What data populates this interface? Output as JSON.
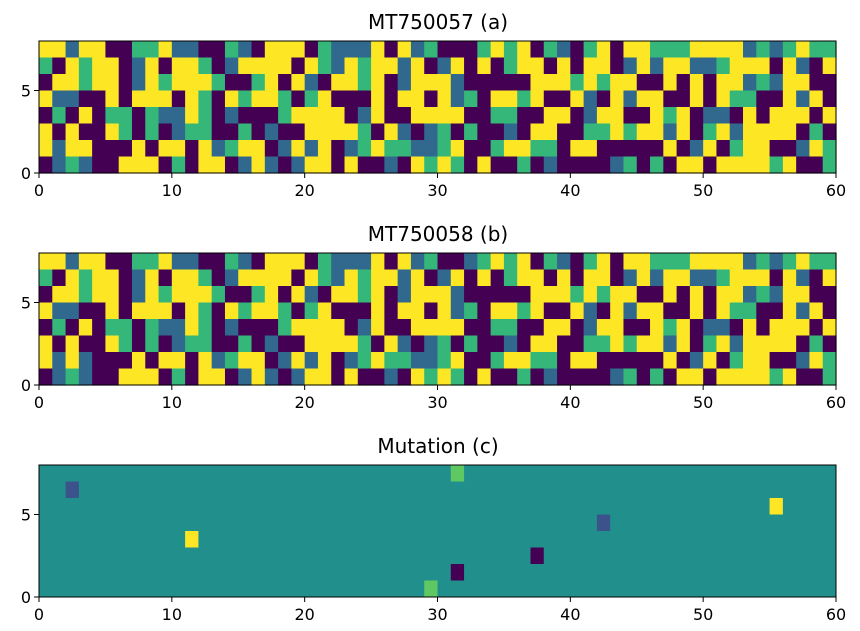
{
  "palette": {
    "0": "#440154",
    "1": "#31688e",
    "2": "#35b779",
    "3": "#fde725",
    "bg": "#21908c",
    "mut_1": "#3b528b",
    "mut_2": "#5ec962",
    "mut_3": "#fde725",
    "mut_0": "#440154"
  },
  "chart_data": [
    {
      "type": "heatmap",
      "title": "MT750057 (a)",
      "xlim": [
        0,
        60
      ],
      "ylim": [
        0,
        8
      ],
      "xticks": [
        0,
        10,
        20,
        30,
        40,
        50,
        60
      ],
      "yticks": [
        0,
        5
      ],
      "rows": [
        "331330022311002103330211130312000232302102303322233331212322",
        "203233013033201333303213233130130302330303301313311233303103",
        "033233013233320023031033230133310000033323233003030331213300",
        "311003033303203233202300030330312033230031031330030322003130",
        "020302202113201000233330130033330022003301330032301103033303",
        "303003202012200201003333203101202001033002232331302313333020",
        "313300030330312330131301232211230023322033000003013023300132",
        "012100333020330131013303001032320300201000012020330333323002"
      ]
    },
    {
      "type": "heatmap",
      "title": "MT750058 (b)",
      "xlim": [
        0,
        60
      ],
      "ylim": [
        0,
        8
      ],
      "xticks": [
        0,
        10,
        20,
        30,
        40,
        50,
        60
      ],
      "yticks": [
        0,
        5
      ],
      "rows": [
        "331330022311002103330211130312001232302102303322233331212322",
        "203233013033201333303213233130130302330303301313311233303103",
        "033233013233320023031033230133310000033323233003030331213300",
        "311003033303203233202300030330312033230031031330030322003130",
        "020302202113201000233330130033330022003301330032301103033303",
        "303003202012200201003333203101202001033002232331302313333020",
        "313100030330312330131301232211230023322033000003013023300132",
        "012100333020330131013303001032320300201000012020330333323002"
      ]
    },
    {
      "type": "heatmap",
      "title": "Mutation (c)",
      "xlim": [
        0,
        60
      ],
      "ylim": [
        0,
        8
      ],
      "xticks": [
        0,
        10,
        20,
        30,
        40,
        50,
        60
      ],
      "yticks": [
        0,
        5
      ],
      "background_value": 0,
      "cells": [
        {
          "x": 2,
          "y": 6,
          "value": "mut_1"
        },
        {
          "x": 11,
          "y": 3,
          "value": "mut_3"
        },
        {
          "x": 29,
          "y": 0,
          "value": "mut_2"
        },
        {
          "x": 31,
          "y": 1,
          "value": "mut_0"
        },
        {
          "x": 31,
          "y": 7,
          "value": "mut_2"
        },
        {
          "x": 37,
          "y": 2,
          "value": "mut_0"
        },
        {
          "x": 42,
          "y": 4,
          "value": "mut_1"
        },
        {
          "x": 55,
          "y": 5,
          "value": "mut_3"
        }
      ]
    }
  ]
}
